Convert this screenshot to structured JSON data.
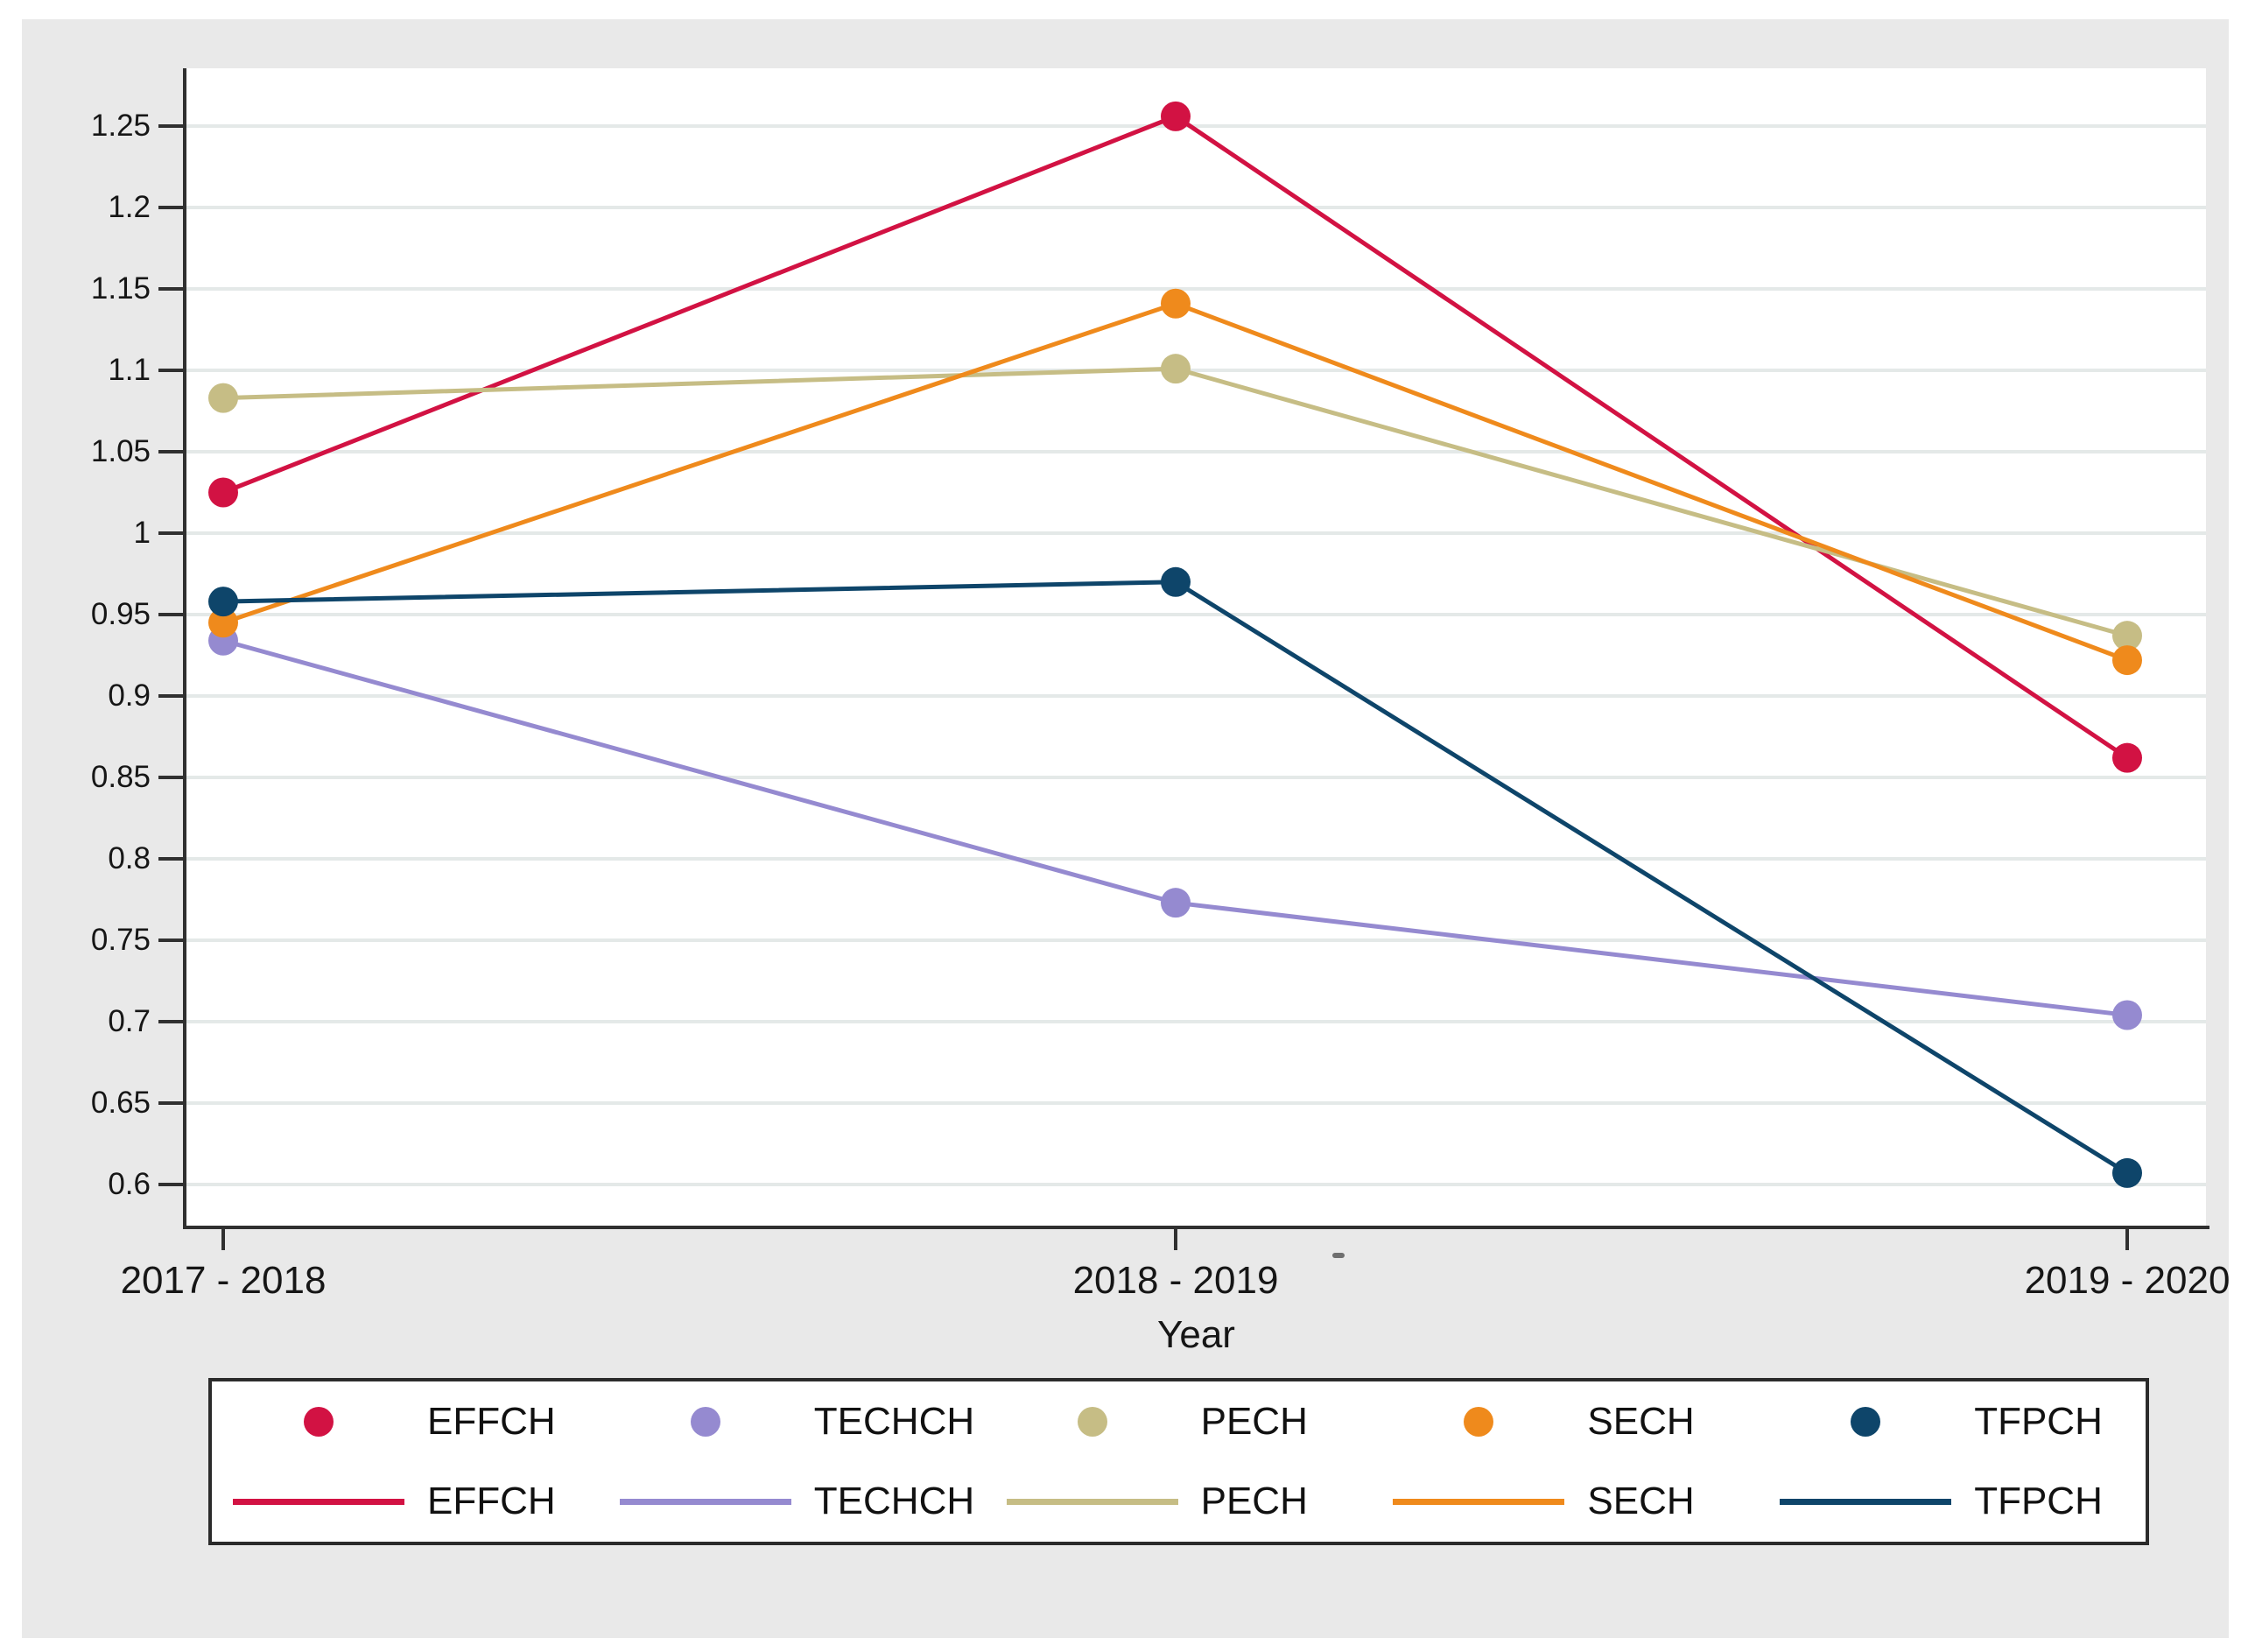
{
  "figure": {
    "background_color": "#e9e9e9",
    "plot_background_color": "#ffffff",
    "axis_color": "#303030",
    "grid_color": "#e4e9e8",
    "text_color": "#161616"
  },
  "chart_data": {
    "type": "line",
    "title": "",
    "xlabel": "Year",
    "ylabel": "",
    "categories": [
      "2017 - 2018",
      "2018 - 2019",
      "2019 - 2020"
    ],
    "ylim": [
      0.5747,
      1.2855
    ],
    "yticks": [
      0.6,
      0.65,
      0.7,
      0.75,
      0.8,
      0.85,
      0.9,
      0.95,
      1,
      1.05,
      1.1,
      1.15,
      1.2,
      1.25
    ],
    "ytick_labels": [
      "0.6",
      "0.65",
      "0.7",
      "0.75",
      "0.8",
      "0.85",
      "0.9",
      "0.95",
      "1",
      "1.05",
      "1.1",
      "1.15",
      "1.2",
      "1.25"
    ],
    "grid": true,
    "legend_position": "bottom",
    "series": [
      {
        "name": "EFFCH",
        "color": "#d21243",
        "values": [
          1.025,
          1.256,
          0.862
        ]
      },
      {
        "name": "TECHCH",
        "color": "#958ad0",
        "values": [
          0.934,
          0.773,
          0.704
        ]
      },
      {
        "name": "PECH",
        "color": "#c6bd85",
        "values": [
          1.083,
          1.101,
          0.937
        ]
      },
      {
        "name": "SECH",
        "color": "#ef8a1c",
        "values": [
          0.945,
          1.141,
          0.922
        ]
      },
      {
        "name": "TFPCH",
        "color": "#0e456a",
        "values": [
          0.958,
          0.97,
          0.607
        ]
      }
    ],
    "legend": {
      "marker_row_labels": [
        "EFFCH",
        "TECHCH",
        "PECH",
        "SECH",
        "TFPCH"
      ],
      "line_row_labels": [
        "EFFCH",
        "TECHCH",
        "PECH",
        "SECH",
        "TFPCH"
      ]
    }
  }
}
